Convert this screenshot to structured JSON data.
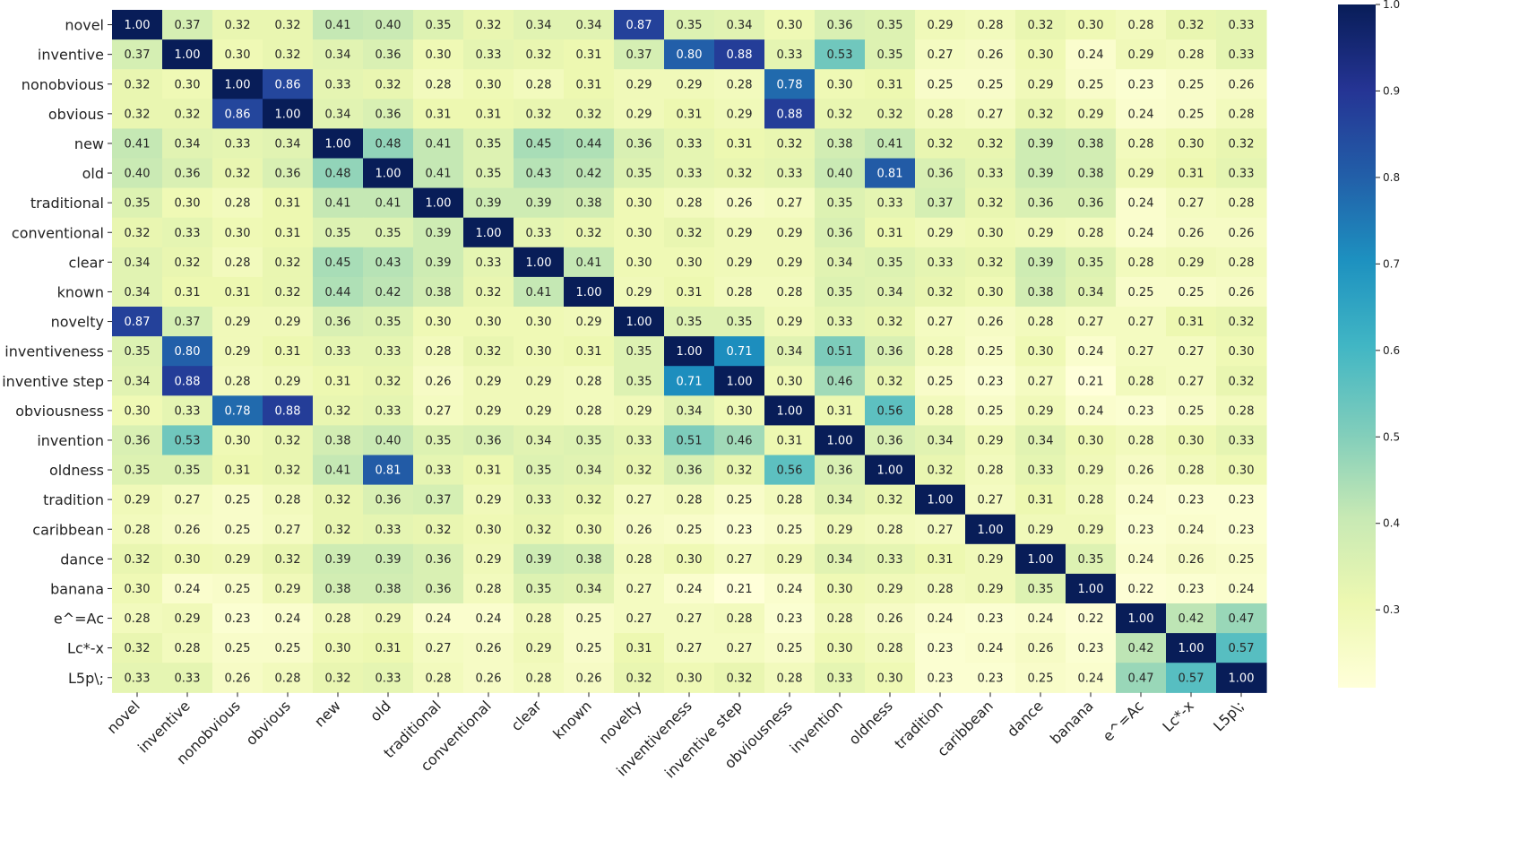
{
  "chart_data": {
    "type": "heatmap",
    "title": "",
    "xlabel": "",
    "ylabel": "",
    "labels": [
      "novel",
      "inventive",
      "nonobvious",
      "obvious",
      "new",
      "old",
      "traditional",
      "conventional",
      "clear",
      "known",
      "novelty",
      "inventiveness",
      "inventive step",
      "obviousness",
      "invention",
      "oldness",
      "tradition",
      "caribbean",
      "dance",
      "banana",
      "e^=Ac",
      "Lc*-x",
      "L5p\\;"
    ],
    "matrix": [
      [
        1.0,
        0.37,
        0.32,
        0.32,
        0.41,
        0.4,
        0.35,
        0.32,
        0.34,
        0.34,
        0.87,
        0.35,
        0.34,
        0.3,
        0.36,
        0.35,
        0.29,
        0.28,
        0.32,
        0.3,
        0.28,
        0.32,
        0.33
      ],
      [
        0.37,
        1.0,
        0.3,
        0.32,
        0.34,
        0.36,
        0.3,
        0.33,
        0.32,
        0.31,
        0.37,
        0.8,
        0.88,
        0.33,
        0.53,
        0.35,
        0.27,
        0.26,
        0.3,
        0.24,
        0.29,
        0.28,
        0.33
      ],
      [
        0.32,
        0.3,
        1.0,
        0.86,
        0.33,
        0.32,
        0.28,
        0.3,
        0.28,
        0.31,
        0.29,
        0.29,
        0.28,
        0.78,
        0.3,
        0.31,
        0.25,
        0.25,
        0.29,
        0.25,
        0.23,
        0.25,
        0.26
      ],
      [
        0.32,
        0.32,
        0.86,
        1.0,
        0.34,
        0.36,
        0.31,
        0.31,
        0.32,
        0.32,
        0.29,
        0.31,
        0.29,
        0.88,
        0.32,
        0.32,
        0.28,
        0.27,
        0.32,
        0.29,
        0.24,
        0.25,
        0.28
      ],
      [
        0.41,
        0.34,
        0.33,
        0.34,
        1.0,
        0.48,
        0.41,
        0.35,
        0.45,
        0.44,
        0.36,
        0.33,
        0.31,
        0.32,
        0.38,
        0.41,
        0.32,
        0.32,
        0.39,
        0.38,
        0.28,
        0.3,
        0.32
      ],
      [
        0.4,
        0.36,
        0.32,
        0.36,
        0.48,
        1.0,
        0.41,
        0.35,
        0.43,
        0.42,
        0.35,
        0.33,
        0.32,
        0.33,
        0.4,
        0.81,
        0.36,
        0.33,
        0.39,
        0.38,
        0.29,
        0.31,
        0.33
      ],
      [
        0.35,
        0.3,
        0.28,
        0.31,
        0.41,
        0.41,
        1.0,
        0.39,
        0.39,
        0.38,
        0.3,
        0.28,
        0.26,
        0.27,
        0.35,
        0.33,
        0.37,
        0.32,
        0.36,
        0.36,
        0.24,
        0.27,
        0.28
      ],
      [
        0.32,
        0.33,
        0.3,
        0.31,
        0.35,
        0.35,
        0.39,
        1.0,
        0.33,
        0.32,
        0.3,
        0.32,
        0.29,
        0.29,
        0.36,
        0.31,
        0.29,
        0.3,
        0.29,
        0.28,
        0.24,
        0.26,
        0.26
      ],
      [
        0.34,
        0.32,
        0.28,
        0.32,
        0.45,
        0.43,
        0.39,
        0.33,
        1.0,
        0.41,
        0.3,
        0.3,
        0.29,
        0.29,
        0.34,
        0.35,
        0.33,
        0.32,
        0.39,
        0.35,
        0.28,
        0.29,
        0.28
      ],
      [
        0.34,
        0.31,
        0.31,
        0.32,
        0.44,
        0.42,
        0.38,
        0.32,
        0.41,
        1.0,
        0.29,
        0.31,
        0.28,
        0.28,
        0.35,
        0.34,
        0.32,
        0.3,
        0.38,
        0.34,
        0.25,
        0.25,
        0.26
      ],
      [
        0.87,
        0.37,
        0.29,
        0.29,
        0.36,
        0.35,
        0.3,
        0.3,
        0.3,
        0.29,
        1.0,
        0.35,
        0.35,
        0.29,
        0.33,
        0.32,
        0.27,
        0.26,
        0.28,
        0.27,
        0.27,
        0.31,
        0.32
      ],
      [
        0.35,
        0.8,
        0.29,
        0.31,
        0.33,
        0.33,
        0.28,
        0.32,
        0.3,
        0.31,
        0.35,
        1.0,
        0.71,
        0.34,
        0.51,
        0.36,
        0.28,
        0.25,
        0.3,
        0.24,
        0.27,
        0.27,
        0.3
      ],
      [
        0.34,
        0.88,
        0.28,
        0.29,
        0.31,
        0.32,
        0.26,
        0.29,
        0.29,
        0.28,
        0.35,
        0.71,
        1.0,
        0.3,
        0.46,
        0.32,
        0.25,
        0.23,
        0.27,
        0.21,
        0.28,
        0.27,
        0.32
      ],
      [
        0.3,
        0.33,
        0.78,
        0.88,
        0.32,
        0.33,
        0.27,
        0.29,
        0.29,
        0.28,
        0.29,
        0.34,
        0.3,
        1.0,
        0.31,
        0.56,
        0.28,
        0.25,
        0.29,
        0.24,
        0.23,
        0.25,
        0.28
      ],
      [
        0.36,
        0.53,
        0.3,
        0.32,
        0.38,
        0.4,
        0.35,
        0.36,
        0.34,
        0.35,
        0.33,
        0.51,
        0.46,
        0.31,
        1.0,
        0.36,
        0.34,
        0.29,
        0.34,
        0.3,
        0.28,
        0.3,
        0.33
      ],
      [
        0.35,
        0.35,
        0.31,
        0.32,
        0.41,
        0.81,
        0.33,
        0.31,
        0.35,
        0.34,
        0.32,
        0.36,
        0.32,
        0.56,
        0.36,
        1.0,
        0.32,
        0.28,
        0.33,
        0.29,
        0.26,
        0.28,
        0.3
      ],
      [
        0.29,
        0.27,
        0.25,
        0.28,
        0.32,
        0.36,
        0.37,
        0.29,
        0.33,
        0.32,
        0.27,
        0.28,
        0.25,
        0.28,
        0.34,
        0.32,
        1.0,
        0.27,
        0.31,
        0.28,
        0.24,
        0.23,
        0.23
      ],
      [
        0.28,
        0.26,
        0.25,
        0.27,
        0.32,
        0.33,
        0.32,
        0.3,
        0.32,
        0.3,
        0.26,
        0.25,
        0.23,
        0.25,
        0.29,
        0.28,
        0.27,
        1.0,
        0.29,
        0.29,
        0.23,
        0.24,
        0.23
      ],
      [
        0.32,
        0.3,
        0.29,
        0.32,
        0.39,
        0.39,
        0.36,
        0.29,
        0.39,
        0.38,
        0.28,
        0.3,
        0.27,
        0.29,
        0.34,
        0.33,
        0.31,
        0.29,
        1.0,
        0.35,
        0.24,
        0.26,
        0.25
      ],
      [
        0.3,
        0.24,
        0.25,
        0.29,
        0.38,
        0.38,
        0.36,
        0.28,
        0.35,
        0.34,
        0.27,
        0.24,
        0.21,
        0.24,
        0.3,
        0.29,
        0.28,
        0.29,
        0.35,
        1.0,
        0.22,
        0.23,
        0.24
      ],
      [
        0.28,
        0.29,
        0.23,
        0.24,
        0.28,
        0.29,
        0.24,
        0.24,
        0.28,
        0.25,
        0.27,
        0.27,
        0.28,
        0.23,
        0.28,
        0.26,
        0.24,
        0.23,
        0.24,
        0.22,
        1.0,
        0.42,
        0.47
      ],
      [
        0.32,
        0.28,
        0.25,
        0.25,
        0.3,
        0.31,
        0.27,
        0.26,
        0.29,
        0.25,
        0.31,
        0.27,
        0.27,
        0.25,
        0.3,
        0.28,
        0.23,
        0.24,
        0.26,
        0.23,
        0.42,
        1.0,
        0.57
      ],
      [
        0.33,
        0.33,
        0.26,
        0.28,
        0.32,
        0.33,
        0.28,
        0.26,
        0.28,
        0.26,
        0.32,
        0.3,
        0.32,
        0.28,
        0.33,
        0.3,
        0.23,
        0.23,
        0.25,
        0.24,
        0.47,
        0.57,
        1.0
      ]
    ],
    "value_format": "2 decimals",
    "colormap": "YlGnBu",
    "colorbar": {
      "vmin": 0.21,
      "vmax": 1.0,
      "ticks": [
        "0.3",
        "0.4",
        "0.5",
        "0.6",
        "0.7",
        "0.8",
        "0.9",
        "1.0"
      ]
    },
    "grid": false,
    "legend": "colorbar right"
  }
}
